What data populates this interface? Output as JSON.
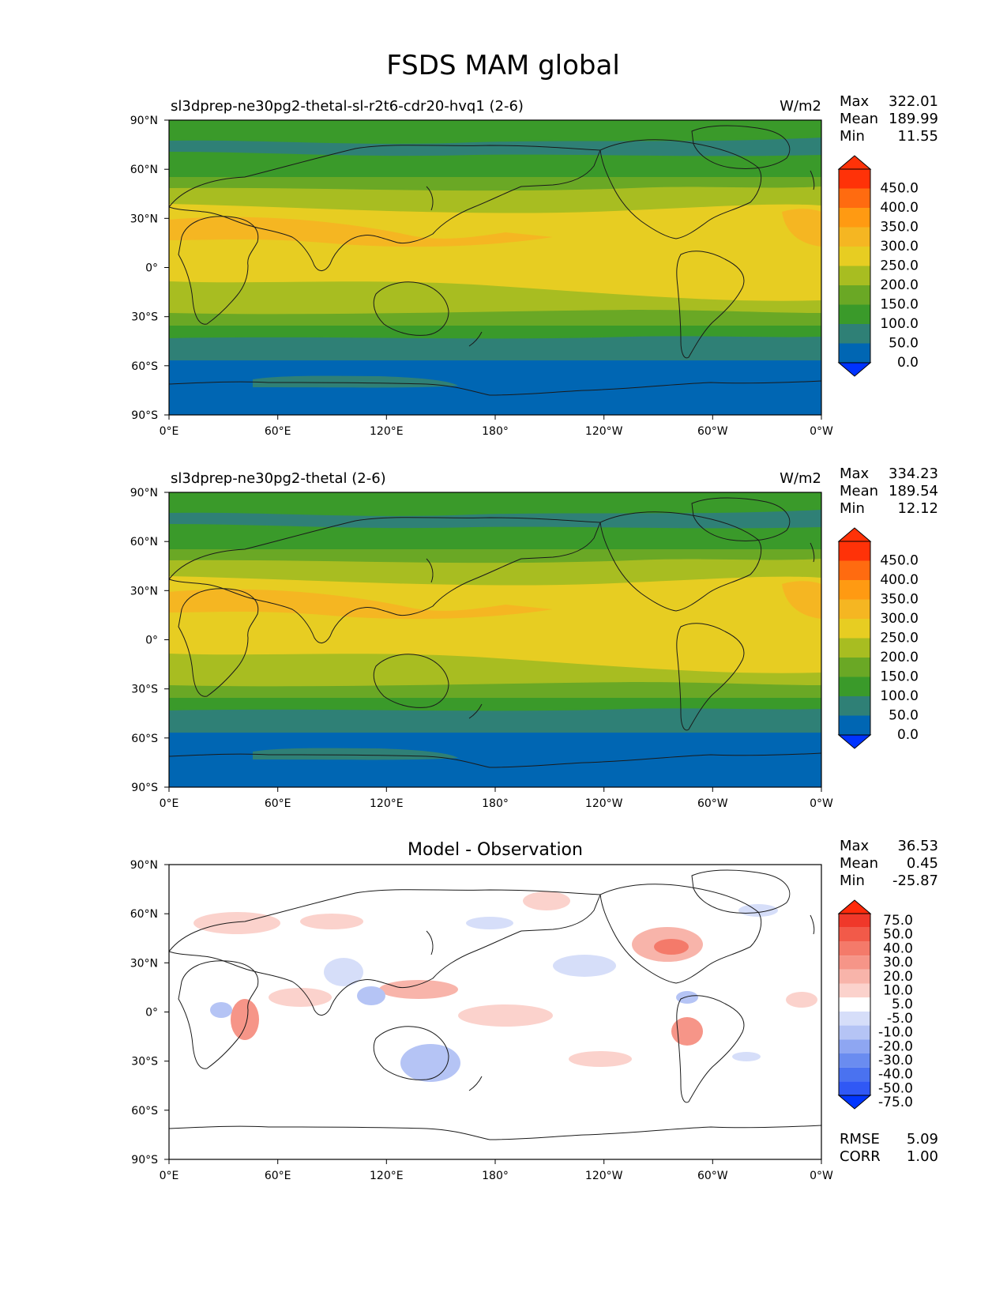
{
  "figure": {
    "title": "FSDS MAM global"
  },
  "colors": {
    "field_levels": [
      "#0033ff",
      "#0066b3",
      "#2f8076",
      "#3a9a2a",
      "#6aa825",
      "#a8bd21",
      "#e7cd22",
      "#f5b622",
      "#ff9a12",
      "#ff6b10",
      "#ff3208"
    ],
    "diff_levels": [
      "#0035ff",
      "#3058f5",
      "#4a72f0",
      "#6a8cf0",
      "#8ea6f2",
      "#b5c4f5",
      "#d6def9",
      "#ffffff",
      "#fbd2cc",
      "#f8b4aa",
      "#f69588",
      "#f47a6a",
      "#f25a49",
      "#f0382a",
      "#ff2a0a"
    ],
    "coastline": "#1a1a1a"
  },
  "map": {
    "lat_ticks": [
      "90°N",
      "60°N",
      "30°N",
      "0°",
      "30°S",
      "60°S",
      "90°S"
    ],
    "lon_ticks": [
      "0°E",
      "60°E",
      "120°E",
      "180°",
      "120°W",
      "60°W",
      "0°W"
    ],
    "projection": "PlateCarree, central longitude 180"
  },
  "panels": [
    {
      "id": "test",
      "title_left": "sl3dprep-ne30pg2-thetal-sl-r2t6-cdr20-hvq1 (2-6)",
      "title_center": "",
      "units": "W/m2",
      "stats": [
        {
          "label": "Max",
          "value": "322.01"
        },
        {
          "label": "Mean",
          "value": "189.99"
        },
        {
          "label": "Min",
          "value": "11.55"
        }
      ],
      "colorbar_labels": [
        "450.0",
        "400.0",
        "350.0",
        "300.0",
        "250.0",
        "200.0",
        "150.0",
        "100.0",
        "50.0",
        "0.0"
      ],
      "kind": "field"
    },
    {
      "id": "reference",
      "title_left": "sl3dprep-ne30pg2-thetal (2-6)",
      "title_center": "",
      "units": "W/m2",
      "stats": [
        {
          "label": "Max",
          "value": "334.23"
        },
        {
          "label": "Mean",
          "value": "189.54"
        },
        {
          "label": "Min",
          "value": "12.12"
        }
      ],
      "colorbar_labels": [
        "450.0",
        "400.0",
        "350.0",
        "300.0",
        "250.0",
        "200.0",
        "150.0",
        "100.0",
        "50.0",
        "0.0"
      ],
      "kind": "field"
    },
    {
      "id": "difference",
      "title_left": "",
      "title_center": "Model - Observation",
      "units": "",
      "stats": [
        {
          "label": "Max",
          "value": "36.53"
        },
        {
          "label": "Mean",
          "value": "0.45"
        },
        {
          "label": "Min",
          "value": "-25.87"
        }
      ],
      "colorbar_labels": [
        "75.0",
        "50.0",
        "40.0",
        "30.0",
        "20.0",
        "10.0",
        "5.0",
        "-5.0",
        "-10.0",
        "-20.0",
        "-30.0",
        "-40.0",
        "-50.0",
        "-75.0"
      ],
      "kind": "diff",
      "extra_stats": [
        {
          "label": "RMSE",
          "value": "5.09"
        },
        {
          "label": "CORR",
          "value": "1.00"
        }
      ]
    }
  ]
}
